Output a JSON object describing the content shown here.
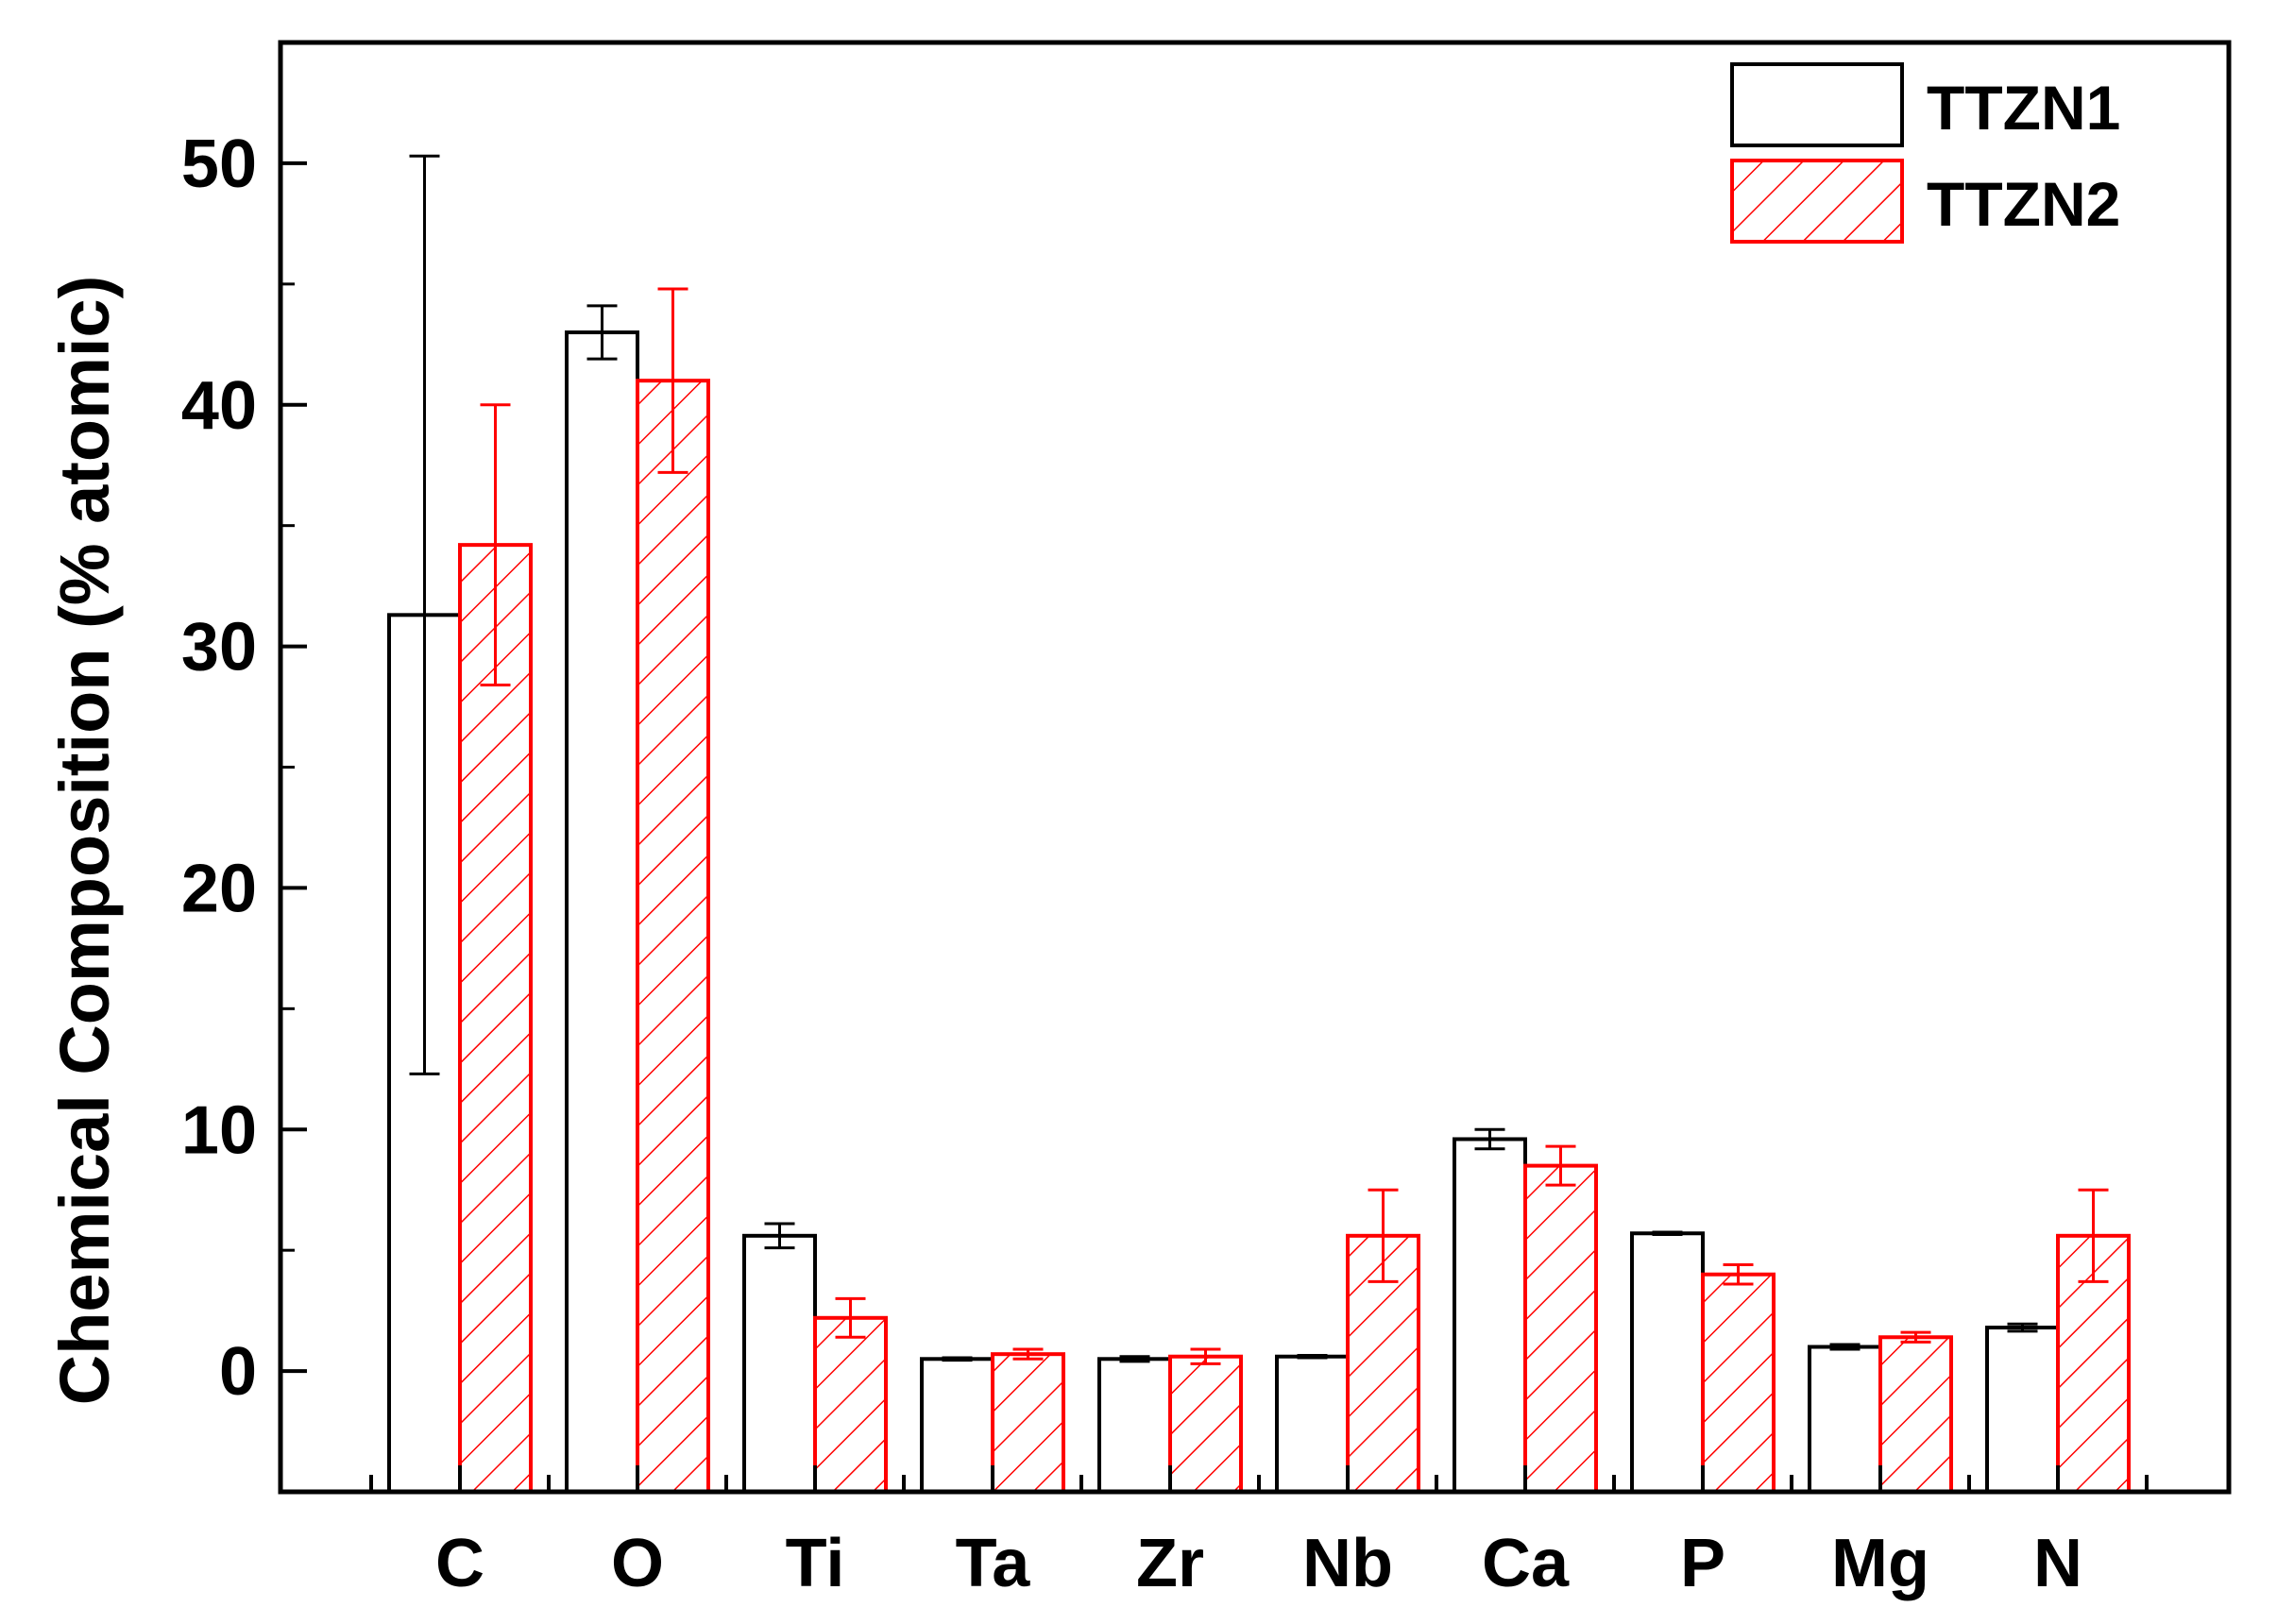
{
  "chart_data": {
    "type": "bar",
    "title": "",
    "xlabel": "",
    "ylabel": "Chemical Composition (% atomic)",
    "ylim": [
      -5,
      55
    ],
    "yticks": [
      0,
      10,
      20,
      30,
      40,
      50
    ],
    "yminor_step": 5,
    "grid": false,
    "legend_position": "top-right",
    "categories": [
      "C",
      "O",
      "Ti",
      "Ta",
      "Zr",
      "Nb",
      "Ca",
      "P",
      "Mg",
      "N"
    ],
    "series": [
      {
        "name": "TTZN1",
        "color": "#000000",
        "fill": "none",
        "values": [
          31.3,
          43.0,
          5.6,
          0.5,
          0.5,
          0.6,
          9.6,
          5.7,
          1.0,
          1.8
        ],
        "errors": [
          19.0,
          1.1,
          0.5,
          0.05,
          0.1,
          0.05,
          0.4,
          0.05,
          0.1,
          0.15
        ]
      },
      {
        "name": "TTZN2",
        "color": "#ff0000",
        "fill": "hatch",
        "values": [
          34.2,
          41.0,
          2.2,
          0.7,
          0.6,
          5.6,
          8.5,
          4.0,
          1.4,
          5.6
        ],
        "errors": [
          5.8,
          3.8,
          0.8,
          0.2,
          0.3,
          1.9,
          0.8,
          0.4,
          0.2,
          1.9
        ]
      }
    ]
  }
}
